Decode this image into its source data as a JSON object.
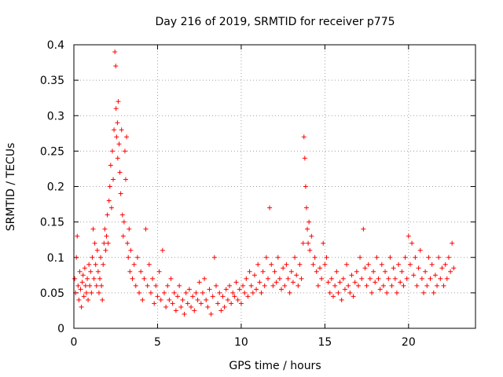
{
  "chart_data": {
    "type": "scatter",
    "title": "Day 216 of 2019, SRMTID for receiver p775",
    "xlabel": "GPS time / hours",
    "ylabel": "SRMTID / TECUs",
    "xlim": [
      0,
      24
    ],
    "ylim": [
      0,
      0.4
    ],
    "xticks": [
      0,
      5,
      10,
      15,
      20
    ],
    "xtick_labels": [
      "0",
      "5",
      "10",
      "15",
      "20"
    ],
    "yticks": [
      0,
      0.05,
      0.1,
      0.15,
      0.2,
      0.25,
      0.3,
      0.35,
      0.4
    ],
    "ytick_labels": [
      "0",
      "0.05",
      "0.1",
      "0.15",
      "0.2",
      "0.25",
      "0.3",
      "0.35",
      "0.4"
    ],
    "grid": true,
    "marker": "+",
    "marker_color": "#ff0000",
    "series": [
      {
        "name": "SRMTID",
        "points": [
          [
            0.05,
            0.07
          ],
          [
            0.1,
            0.05
          ],
          [
            0.15,
            0.1
          ],
          [
            0.2,
            0.13
          ],
          [
            0.25,
            0.06
          ],
          [
            0.3,
            0.04
          ],
          [
            0.35,
            0.08
          ],
          [
            0.4,
            0.055
          ],
          [
            0.45,
            0.03
          ],
          [
            0.5,
            0.065
          ],
          [
            0.55,
            0.075
          ],
          [
            0.6,
            0.045
          ],
          [
            0.65,
            0.085
          ],
          [
            0.7,
            0.06
          ],
          [
            0.75,
            0.05
          ],
          [
            0.8,
            0.07
          ],
          [
            0.85,
            0.04
          ],
          [
            0.9,
            0.09
          ],
          [
            0.95,
            0.06
          ],
          [
            1.0,
            0.08
          ],
          [
            1.05,
            0.05
          ],
          [
            1.1,
            0.1
          ],
          [
            1.15,
            0.14
          ],
          [
            1.2,
            0.07
          ],
          [
            1.25,
            0.12
          ],
          [
            1.3,
            0.09
          ],
          [
            1.35,
            0.06
          ],
          [
            1.4,
            0.11
          ],
          [
            1.45,
            0.08
          ],
          [
            1.5,
            0.05
          ],
          [
            1.55,
            0.07
          ],
          [
            1.6,
            0.1
          ],
          [
            1.65,
            0.06
          ],
          [
            1.7,
            0.04
          ],
          [
            1.75,
            0.09
          ],
          [
            1.8,
            0.12
          ],
          [
            1.85,
            0.14
          ],
          [
            1.9,
            0.11
          ],
          [
            1.95,
            0.13
          ],
          [
            2.0,
            0.16
          ],
          [
            2.05,
            0.12
          ],
          [
            2.1,
            0.18
          ],
          [
            2.15,
            0.2
          ],
          [
            2.2,
            0.23
          ],
          [
            2.25,
            0.17
          ],
          [
            2.3,
            0.25
          ],
          [
            2.35,
            0.21
          ],
          [
            2.4,
            0.28
          ],
          [
            2.45,
            0.39
          ],
          [
            2.5,
            0.37
          ],
          [
            2.52,
            0.31
          ],
          [
            2.55,
            0.27
          ],
          [
            2.6,
            0.29
          ],
          [
            2.62,
            0.24
          ],
          [
            2.65,
            0.32
          ],
          [
            2.7,
            0.26
          ],
          [
            2.75,
            0.22
          ],
          [
            2.8,
            0.19
          ],
          [
            2.85,
            0.28
          ],
          [
            2.9,
            0.16
          ],
          [
            2.95,
            0.13
          ],
          [
            3.0,
            0.15
          ],
          [
            3.05,
            0.25
          ],
          [
            3.1,
            0.21
          ],
          [
            3.15,
            0.27
          ],
          [
            3.2,
            0.12
          ],
          [
            3.25,
            0.1
          ],
          [
            3.3,
            0.14
          ],
          [
            3.35,
            0.08
          ],
          [
            3.4,
            0.11
          ],
          [
            3.5,
            0.07
          ],
          [
            3.6,
            0.09
          ],
          [
            3.7,
            0.06
          ],
          [
            3.8,
            0.1
          ],
          [
            3.9,
            0.05
          ],
          [
            4.0,
            0.08
          ],
          [
            4.1,
            0.04
          ],
          [
            4.2,
            0.07
          ],
          [
            4.3,
            0.14
          ],
          [
            4.4,
            0.06
          ],
          [
            4.5,
            0.09
          ],
          [
            4.6,
            0.05
          ],
          [
            4.7,
            0.07
          ],
          [
            4.8,
            0.035
          ],
          [
            4.9,
            0.06
          ],
          [
            5.0,
            0.045
          ],
          [
            5.1,
            0.08
          ],
          [
            5.2,
            0.04
          ],
          [
            5.3,
            0.11
          ],
          [
            5.4,
            0.05
          ],
          [
            5.5,
            0.03
          ],
          [
            5.6,
            0.06
          ],
          [
            5.7,
            0.04
          ],
          [
            5.8,
            0.07
          ],
          [
            5.9,
            0.035
          ],
          [
            6.0,
            0.05
          ],
          [
            6.1,
            0.025
          ],
          [
            6.2,
            0.045
          ],
          [
            6.3,
            0.06
          ],
          [
            6.4,
            0.03
          ],
          [
            6.5,
            0.04
          ],
          [
            6.6,
            0.02
          ],
          [
            6.7,
            0.05
          ],
          [
            6.8,
            0.035
          ],
          [
            6.9,
            0.055
          ],
          [
            7.0,
            0.03
          ],
          [
            7.1,
            0.045
          ],
          [
            7.2,
            0.025
          ],
          [
            7.3,
            0.05
          ],
          [
            7.4,
            0.04
          ],
          [
            7.5,
            0.065
          ],
          [
            7.6,
            0.035
          ],
          [
            7.7,
            0.05
          ],
          [
            7.8,
            0.07
          ],
          [
            7.9,
            0.04
          ],
          [
            8.0,
            0.03
          ],
          [
            8.1,
            0.055
          ],
          [
            8.2,
            0.02
          ],
          [
            8.3,
            0.045
          ],
          [
            8.4,
            0.1
          ],
          [
            8.5,
            0.06
          ],
          [
            8.6,
            0.035
          ],
          [
            8.7,
            0.05
          ],
          [
            8.8,
            0.025
          ],
          [
            8.9,
            0.045
          ],
          [
            9.0,
            0.03
          ],
          [
            9.1,
            0.055
          ],
          [
            9.2,
            0.04
          ],
          [
            9.3,
            0.06
          ],
          [
            9.4,
            0.035
          ],
          [
            9.5,
            0.05
          ],
          [
            9.6,
            0.045
          ],
          [
            9.7,
            0.065
          ],
          [
            9.8,
            0.04
          ],
          [
            9.9,
            0.055
          ],
          [
            10.0,
            0.035
          ],
          [
            10.1,
            0.06
          ],
          [
            10.2,
            0.05
          ],
          [
            10.3,
            0.07
          ],
          [
            10.4,
            0.045
          ],
          [
            10.5,
            0.08
          ],
          [
            10.6,
            0.06
          ],
          [
            10.7,
            0.05
          ],
          [
            10.8,
            0.075
          ],
          [
            10.9,
            0.055
          ],
          [
            11.0,
            0.09
          ],
          [
            11.1,
            0.065
          ],
          [
            11.2,
            0.05
          ],
          [
            11.3,
            0.08
          ],
          [
            11.4,
            0.06
          ],
          [
            11.5,
            0.1
          ],
          [
            11.6,
            0.07
          ],
          [
            11.7,
            0.17
          ],
          [
            11.8,
            0.09
          ],
          [
            11.9,
            0.06
          ],
          [
            12.0,
            0.08
          ],
          [
            12.1,
            0.065
          ],
          [
            12.2,
            0.1
          ],
          [
            12.3,
            0.07
          ],
          [
            12.4,
            0.055
          ],
          [
            12.5,
            0.085
          ],
          [
            12.6,
            0.06
          ],
          [
            12.7,
            0.09
          ],
          [
            12.8,
            0.07
          ],
          [
            12.9,
            0.05
          ],
          [
            13.0,
            0.08
          ],
          [
            13.1,
            0.065
          ],
          [
            13.2,
            0.1
          ],
          [
            13.3,
            0.075
          ],
          [
            13.4,
            0.06
          ],
          [
            13.5,
            0.09
          ],
          [
            13.6,
            0.07
          ],
          [
            13.7,
            0.12
          ],
          [
            13.75,
            0.27
          ],
          [
            13.8,
            0.24
          ],
          [
            13.85,
            0.2
          ],
          [
            13.9,
            0.17
          ],
          [
            13.95,
            0.14
          ],
          [
            14.0,
            0.12
          ],
          [
            14.05,
            0.15
          ],
          [
            14.1,
            0.11
          ],
          [
            14.2,
            0.13
          ],
          [
            14.3,
            0.09
          ],
          [
            14.4,
            0.1
          ],
          [
            14.5,
            0.08
          ],
          [
            14.6,
            0.06
          ],
          [
            14.7,
            0.085
          ],
          [
            14.8,
            0.07
          ],
          [
            14.9,
            0.12
          ],
          [
            15.0,
            0.09
          ],
          [
            15.1,
            0.1
          ],
          [
            15.2,
            0.065
          ],
          [
            15.3,
            0.05
          ],
          [
            15.4,
            0.07
          ],
          [
            15.5,
            0.045
          ],
          [
            15.6,
            0.06
          ],
          [
            15.7,
            0.08
          ],
          [
            15.8,
            0.05
          ],
          [
            15.9,
            0.065
          ],
          [
            16.0,
            0.04
          ],
          [
            16.1,
            0.07
          ],
          [
            16.2,
            0.055
          ],
          [
            16.3,
            0.09
          ],
          [
            16.4,
            0.06
          ],
          [
            16.5,
            0.05
          ],
          [
            16.6,
            0.075
          ],
          [
            16.7,
            0.045
          ],
          [
            16.8,
            0.065
          ],
          [
            16.9,
            0.08
          ],
          [
            17.0,
            0.06
          ],
          [
            17.1,
            0.1
          ],
          [
            17.2,
            0.07
          ],
          [
            17.3,
            0.14
          ],
          [
            17.4,
            0.085
          ],
          [
            17.5,
            0.06
          ],
          [
            17.6,
            0.09
          ],
          [
            17.7,
            0.07
          ],
          [
            17.8,
            0.05
          ],
          [
            17.9,
            0.08
          ],
          [
            18.0,
            0.065
          ],
          [
            18.1,
            0.1
          ],
          [
            18.2,
            0.07
          ],
          [
            18.3,
            0.055
          ],
          [
            18.4,
            0.09
          ],
          [
            18.5,
            0.06
          ],
          [
            18.6,
            0.08
          ],
          [
            18.7,
            0.05
          ],
          [
            18.8,
            0.07
          ],
          [
            18.9,
            0.1
          ],
          [
            19.0,
            0.06
          ],
          [
            19.1,
            0.085
          ],
          [
            19.2,
            0.07
          ],
          [
            19.3,
            0.05
          ],
          [
            19.4,
            0.09
          ],
          [
            19.5,
            0.065
          ],
          [
            19.6,
            0.08
          ],
          [
            19.7,
            0.06
          ],
          [
            19.8,
            0.1
          ],
          [
            19.9,
            0.07
          ],
          [
            20.0,
            0.13
          ],
          [
            20.1,
            0.09
          ],
          [
            20.2,
            0.12
          ],
          [
            20.3,
            0.075
          ],
          [
            20.4,
            0.1
          ],
          [
            20.5,
            0.06
          ],
          [
            20.6,
            0.085
          ],
          [
            20.7,
            0.11
          ],
          [
            20.8,
            0.07
          ],
          [
            20.9,
            0.05
          ],
          [
            21.0,
            0.08
          ],
          [
            21.1,
            0.06
          ],
          [
            21.2,
            0.1
          ],
          [
            21.3,
            0.07
          ],
          [
            21.4,
            0.09
          ],
          [
            21.5,
            0.05
          ],
          [
            21.6,
            0.075
          ],
          [
            21.7,
            0.06
          ],
          [
            21.8,
            0.1
          ],
          [
            21.9,
            0.07
          ],
          [
            22.0,
            0.085
          ],
          [
            22.1,
            0.06
          ],
          [
            22.2,
            0.09
          ],
          [
            22.3,
            0.07
          ],
          [
            22.4,
            0.1
          ],
          [
            22.5,
            0.08
          ],
          [
            22.6,
            0.12
          ],
          [
            22.7,
            0.085
          ]
        ]
      }
    ]
  }
}
